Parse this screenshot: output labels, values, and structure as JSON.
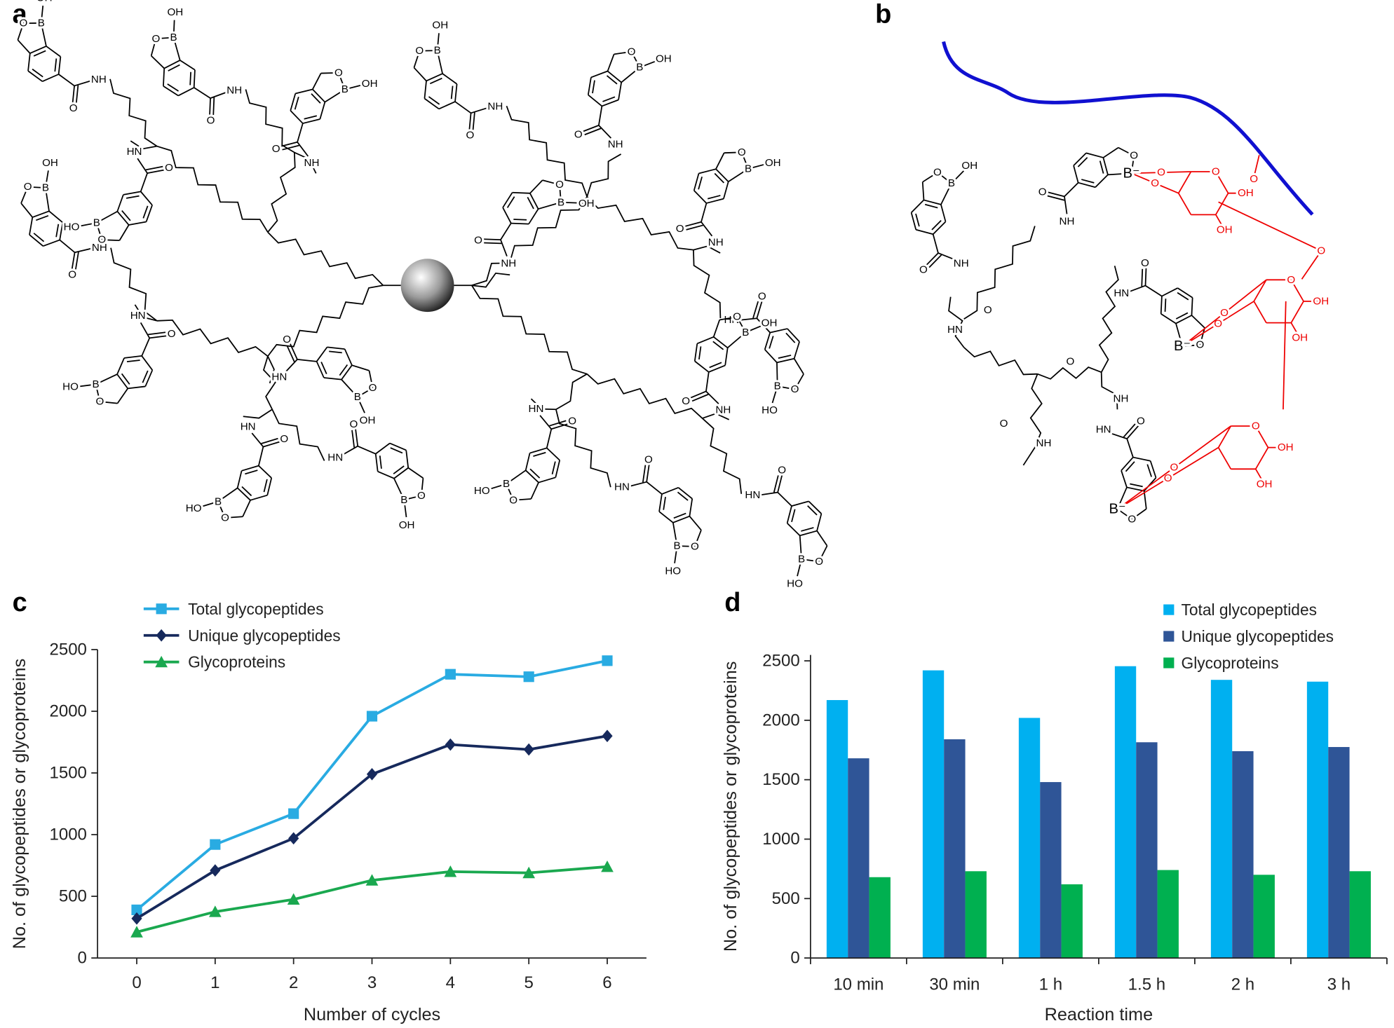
{
  "panels": {
    "a": {
      "label": "a",
      "atoms": [
        "B",
        "O",
        "OH",
        "HO",
        "NH",
        "HN"
      ]
    },
    "b": {
      "label": "b",
      "atoms": [
        "B",
        "O",
        "OH",
        "HO",
        "NH",
        "HN",
        "B⁻"
      ]
    }
  },
  "chart_data": [
    {
      "type": "line",
      "label": "c",
      "x": [
        0,
        1,
        2,
        3,
        4,
        5,
        6
      ],
      "xlim": [
        -0.5,
        6.5
      ],
      "xticks": [
        0,
        1,
        2,
        3,
        4,
        5,
        6
      ],
      "ylim": [
        0,
        2500
      ],
      "yticks": [
        0,
        500,
        1000,
        1500,
        2000,
        2500
      ],
      "x_label": "Number of cycles",
      "y_label": "No. of glycopeptides or glycoproteins",
      "legend": "top-left",
      "series": [
        {
          "name": "Total glycopeptides",
          "color": "#29abe2",
          "marker": "square",
          "values": [
            390,
            920,
            1170,
            1960,
            2300,
            2280,
            2410
          ]
        },
        {
          "name": "Unique glycopeptides",
          "color": "#16295c",
          "marker": "diamond",
          "values": [
            320,
            710,
            970,
            1490,
            1730,
            1690,
            1800
          ]
        },
        {
          "name": "Glycoproteins",
          "color": "#1aa84f",
          "marker": "triangle",
          "values": [
            210,
            375,
            475,
            630,
            700,
            690,
            740
          ]
        }
      ]
    },
    {
      "type": "bar",
      "label": "d",
      "categories": [
        "10 min",
        "30 min",
        "1 h",
        "1.5 h",
        "2 h",
        "3 h"
      ],
      "ylim": [
        0,
        2550
      ],
      "yticks": [
        0,
        500,
        1000,
        1500,
        2000,
        2500
      ],
      "x_label": "Reaction time",
      "y_label": "No. of glycopeptides or glycoproteins",
      "legend": "top-right",
      "series": [
        {
          "name": "Total glycopeptides",
          "color": "#00b0f0",
          "values": [
            2170,
            2420,
            2020,
            2455,
            2340,
            2325
          ]
        },
        {
          "name": "Unique glycopeptides",
          "color": "#2f5597",
          "values": [
            1680,
            1840,
            1480,
            1815,
            1740,
            1775
          ]
        },
        {
          "name": "Glycoproteins",
          "color": "#00b050",
          "values": [
            680,
            730,
            620,
            740,
            700,
            730
          ]
        }
      ]
    }
  ]
}
